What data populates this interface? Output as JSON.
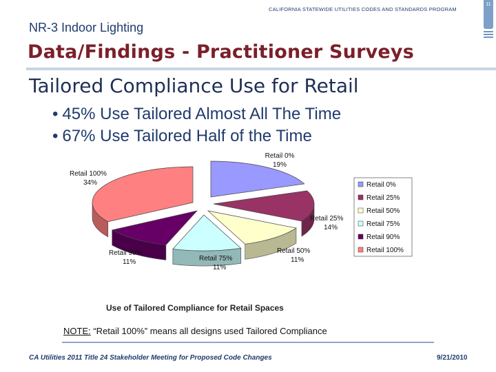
{
  "header": {
    "program": "CALIFORNIA STATEWIDE UTILITIES CODES AND STANDARDS PROGRAM",
    "page_number": "11"
  },
  "section_title": "NR-3 Indoor Lighting",
  "main_title": "Data/Findings - Practitioner Surveys",
  "subtitle": "Tailored Compliance Use for Retail",
  "bullets": [
    "45% Use Tailored Almost All The Time",
    "67% Use Tailored Half of the Time"
  ],
  "chart_data": {
    "type": "pie",
    "title": "Use of Tailored Compliance for Retail Spaces",
    "legend_position": "right",
    "slices": [
      {
        "label": "Retail 0%",
        "pct_label": "19%",
        "value": 19,
        "color": "#9999ff"
      },
      {
        "label": "Retail 25%",
        "pct_label": "14%",
        "value": 14,
        "color": "#993366"
      },
      {
        "label": "Retail 50%",
        "pct_label": "11%",
        "value": 11,
        "color": "#ffffcc"
      },
      {
        "label": "Retail 75%",
        "pct_label": "11%",
        "value": 11,
        "color": "#ccffff"
      },
      {
        "label": "Retail 90%",
        "pct_label": "11%",
        "value": 11,
        "color": "#660066"
      },
      {
        "label": "Retail 100%",
        "pct_label": "34%",
        "value": 34,
        "color": "#ff8080"
      }
    ]
  },
  "note": {
    "prefix": "NOTE:",
    "text": " “Retail 100%” means all designs used Tailored Compliance"
  },
  "footer": {
    "left": "CA Utilities 2011 Title 24 Stakeholder Meeting for Proposed Code Changes",
    "date": "9/21/2010"
  }
}
